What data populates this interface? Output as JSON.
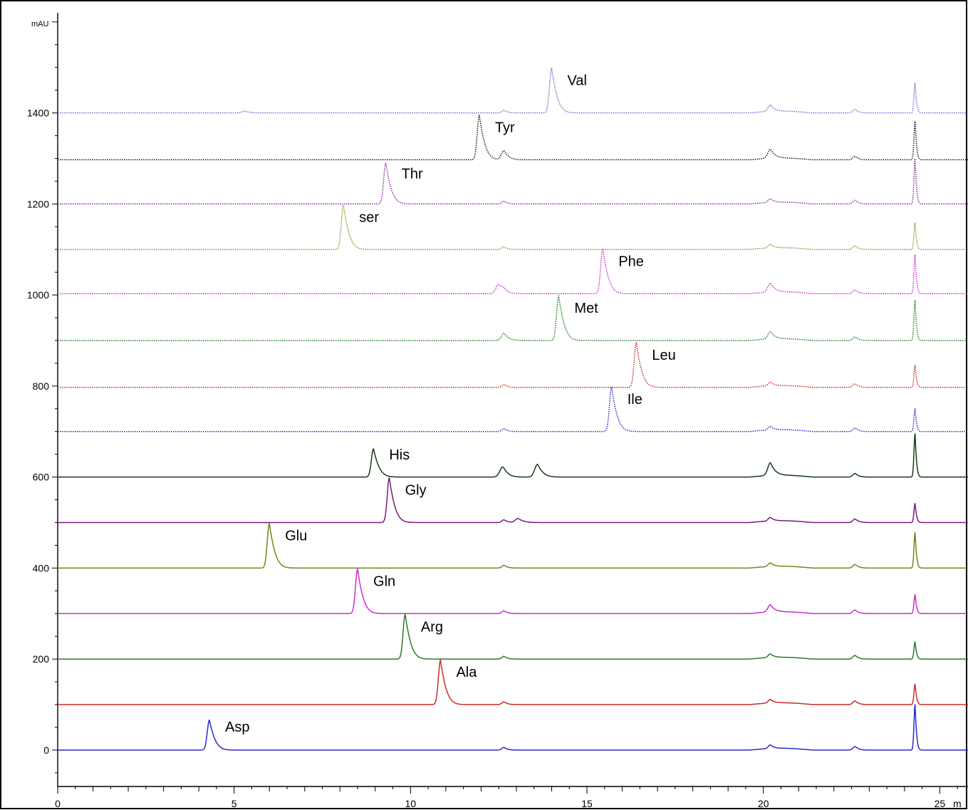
{
  "chart_data": {
    "type": "line",
    "title": "",
    "ylabel": "mAU",
    "xlabel": "m",
    "xlim": [
      0,
      25.8
    ],
    "ylim": [
      -80,
      1620
    ],
    "grid": false,
    "x_ticks": [
      0,
      5,
      10,
      15,
      20,
      25
    ],
    "x_tick_labels": [
      "0",
      "5",
      "10",
      "15",
      "20",
      "25"
    ],
    "y_ticks": [
      0,
      200,
      400,
      600,
      800,
      1000,
      1200,
      1400
    ],
    "y_tick_labels": [
      "0",
      "200",
      "400",
      "600",
      "800",
      "1000",
      "1200",
      "1400"
    ],
    "common_peaks": [
      {
        "x": 12.65,
        "h": 6
      },
      {
        "x": 20.2,
        "h": 8
      },
      {
        "x": 22.6,
        "h": 8
      }
    ],
    "final_peak_x": 24.3,
    "series": [
      {
        "name": "Val",
        "color": "#6c6cd6",
        "baseline": 1400,
        "peak_x": 14.0,
        "peak_height": 98,
        "dotted": true,
        "final_peak": 65,
        "extra_peaks": [
          {
            "x": 5.3,
            "h": 4
          },
          {
            "x": 20.2,
            "h": 6
          }
        ]
      },
      {
        "name": "Tyr",
        "color": "#1a1a1a",
        "baseline": 1297,
        "peak_x": 11.95,
        "peak_height": 98,
        "dotted": true,
        "final_peak": 85,
        "extra_peaks": [
          {
            "x": 12.65,
            "h": 14
          },
          {
            "x": 20.2,
            "h": 12
          }
        ]
      },
      {
        "name": "Thr",
        "color": "#8a2a9e",
        "baseline": 1200,
        "peak_x": 9.3,
        "peak_height": 90,
        "dotted": true,
        "final_peak": 100,
        "extra_peaks": []
      },
      {
        "name": "ser",
        "color": "#7a9a2a",
        "baseline": 1100,
        "peak_x": 8.1,
        "peak_height": 98,
        "dotted": true,
        "final_peak": 58,
        "extra_peaks": []
      },
      {
        "name": "Phe",
        "color": "#cc2fcc",
        "baseline": 1003,
        "peak_x": 15.45,
        "peak_height": 98,
        "dotted": true,
        "final_peak": 86,
        "extra_peaks": [
          {
            "x": 12.5,
            "h": 20
          },
          {
            "x": 20.2,
            "h": 12
          }
        ]
      },
      {
        "name": "Met",
        "color": "#2a7a2a",
        "baseline": 900,
        "peak_x": 14.2,
        "peak_height": 98,
        "dotted": true,
        "final_peak": 88,
        "extra_peaks": [
          {
            "x": 12.65,
            "h": 10
          },
          {
            "x": 20.2,
            "h": 8
          }
        ]
      },
      {
        "name": "Leu",
        "color": "#cc2a2a",
        "baseline": 797,
        "peak_x": 16.4,
        "peak_height": 98,
        "dotted": true,
        "final_peak": 48,
        "extra_peaks": []
      },
      {
        "name": "Ile",
        "color": "#2a2abf",
        "baseline": 700,
        "peak_x": 15.7,
        "peak_height": 98,
        "dotted": true,
        "final_peak": 50,
        "extra_peaks": []
      },
      {
        "name": "His",
        "color": "#1a3a1a",
        "baseline": 600,
        "peak_x": 8.95,
        "peak_height": 62,
        "dotted": false,
        "final_peak": 95,
        "extra_peaks": [
          {
            "x": 12.6,
            "h": 18
          },
          {
            "x": 13.6,
            "h": 28
          },
          {
            "x": 20.2,
            "h": 20
          }
        ]
      },
      {
        "name": "Gly",
        "color": "#7a1a7a",
        "baseline": 500,
        "peak_x": 9.4,
        "peak_height": 98,
        "dotted": false,
        "final_peak": 42,
        "extra_peaks": [
          {
            "x": 13.05,
            "h": 9
          }
        ]
      },
      {
        "name": "Glu",
        "color": "#6a8a1a",
        "baseline": 400,
        "peak_x": 6.0,
        "peak_height": 98,
        "dotted": false,
        "final_peak": 78,
        "extra_peaks": []
      },
      {
        "name": "Gln",
        "color": "#cc2fcc",
        "baseline": 300,
        "peak_x": 8.5,
        "peak_height": 98,
        "dotted": false,
        "final_peak": 42,
        "extra_peaks": [
          {
            "x": 20.2,
            "h": 8
          }
        ]
      },
      {
        "name": "Arg",
        "color": "#2a7a2a",
        "baseline": 200,
        "peak_x": 9.85,
        "peak_height": 98,
        "dotted": false,
        "final_peak": 38,
        "extra_peaks": []
      },
      {
        "name": "Ala",
        "color": "#cc2a2a",
        "baseline": 100,
        "peak_x": 10.85,
        "peak_height": 98,
        "dotted": false,
        "final_peak": 45,
        "extra_peaks": []
      },
      {
        "name": "Asp",
        "color": "#2a2acc",
        "baseline": 0,
        "peak_x": 4.3,
        "peak_height": 66,
        "dotted": false,
        "final_peak": 100,
        "extra_peaks": []
      }
    ]
  }
}
